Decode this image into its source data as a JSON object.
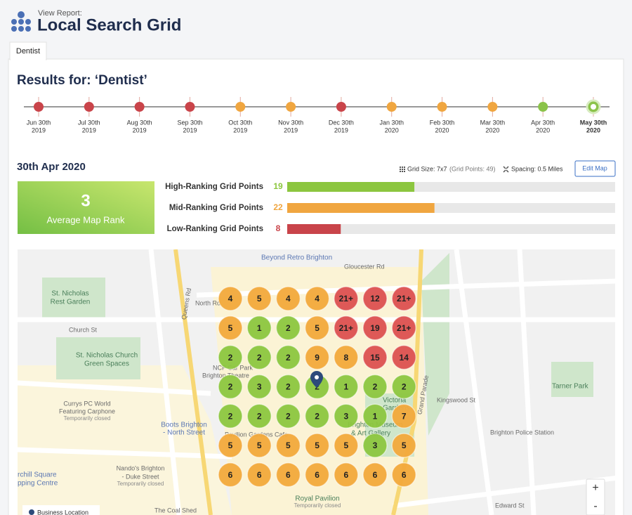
{
  "header": {
    "subtitle": "View Report:",
    "title": "Local Search Grid"
  },
  "tabs": [
    "Dentist"
  ],
  "results_title": "Results for: ‘Dentist’",
  "timeline": {
    "selected_index": 11,
    "points": [
      {
        "month": "Jun 30th",
        "year": "2019",
        "color": "#c9444a"
      },
      {
        "month": "Jul 30th",
        "year": "2019",
        "color": "#c9444a"
      },
      {
        "month": "Aug 30th",
        "year": "2019",
        "color": "#c9444a"
      },
      {
        "month": "Sep 30th",
        "year": "2019",
        "color": "#c9444a"
      },
      {
        "month": "Oct 30th",
        "year": "2019",
        "color": "#f0a640"
      },
      {
        "month": "Nov 30th",
        "year": "2019",
        "color": "#f0a640"
      },
      {
        "month": "Dec 30th",
        "year": "2019",
        "color": "#c9444a"
      },
      {
        "month": "Jan 30th",
        "year": "2020",
        "color": "#f0a640"
      },
      {
        "month": "Feb 30th",
        "year": "2020",
        "color": "#f0a640"
      },
      {
        "month": "Mar 30th",
        "year": "2020",
        "color": "#f0a640"
      },
      {
        "month": "Apr 30th",
        "year": "2020",
        "color": "#8bc34a"
      },
      {
        "month": "May 30th",
        "year": "2020",
        "color": "#8bc34a"
      }
    ]
  },
  "report": {
    "date": "30th Apr 2020",
    "grid_size": "Grid Size: 7x7",
    "grid_points": "(Grid Points: 49)",
    "spacing": "Spacing: 0.5 Miles",
    "edit_button": "Edit Map",
    "average_rank": 3,
    "average_label": "Average Map Rank",
    "ranking": [
      {
        "label": "High-Ranking Grid Points",
        "value": 19,
        "color": "#8cc63f"
      },
      {
        "label": "Mid-Ranking Grid Points",
        "value": 22,
        "color": "#f0a640"
      },
      {
        "label": "Low-Ranking Grid Points",
        "value": 8,
        "color": "#c9444a"
      }
    ]
  },
  "map": {
    "colors": {
      "high": "#8cc63f",
      "mid": "#f2a93b",
      "low": "#dc5050"
    },
    "grid": [
      [
        "4",
        "5",
        "4",
        "4",
        "21+",
        "12",
        "21+"
      ],
      [
        "5",
        "1",
        "2",
        "5",
        "21+",
        "19",
        "21+"
      ],
      [
        "2",
        "2",
        "2",
        "9",
        "8",
        "15",
        "14"
      ],
      [
        "2",
        "3",
        "2",
        "2",
        "1",
        "2",
        "2"
      ],
      [
        "2",
        "2",
        "2",
        "2",
        "3",
        "1",
        "7"
      ],
      [
        "5",
        "5",
        "5",
        "5",
        "5",
        "3",
        "5"
      ],
      [
        "6",
        "6",
        "6",
        "6",
        "6",
        "6",
        "6"
      ]
    ],
    "labels": [
      "Beyond Retro Brighton",
      "Gloucester Rd",
      "St. Nicholas",
      "Rest Garden",
      "North Rd",
      "Queens Rd",
      "Church St",
      "St. Nicholas Church",
      "Green Spaces",
      "NCP Car Park",
      "Brighton Theatre",
      "Currys PC World",
      "Featuring Carphone",
      "Temporarily closed",
      "Boots Brighton",
      "- North Street",
      "Pavilion Gardens Cafe",
      "Brighton Museum",
      "& Art Gallery",
      "Victoria",
      "Gardens",
      "Grand Parade",
      "Tarner Park",
      "Brighton Police Station",
      "Nando's Brighton",
      "- Duke Street",
      "Temporarily closed",
      "rchill Square",
      "pping Centre",
      "Royal Pavilion",
      "Temporarily closed",
      "The Coal Shed",
      "Edward St",
      "Kingswood St"
    ],
    "legend": "Business Location",
    "zoom_in": "+",
    "zoom_out": "-"
  }
}
